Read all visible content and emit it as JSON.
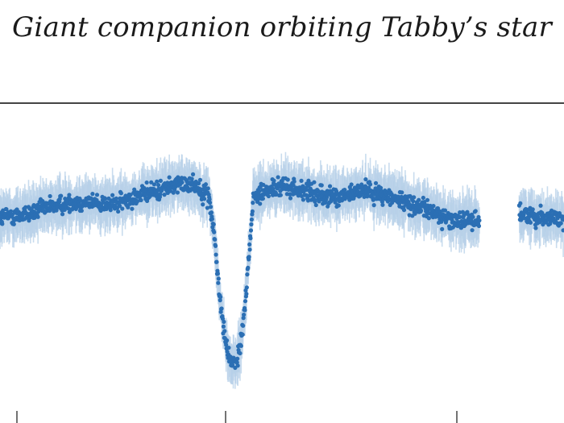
{
  "chart_data": {
    "type": "scatter",
    "title": "Giant companion orbiting Tabby’s star",
    "xlabel": "",
    "ylabel": "",
    "xlim": [
      0,
      100
    ],
    "ylim": [
      0,
      100
    ],
    "grid": false,
    "legend": "none",
    "error_bars": true,
    "colors": {
      "marker": "#2b6fb4",
      "error_bar": "#b7d0e8",
      "frame": "#444444"
    },
    "series": [
      {
        "name": "",
        "x": [
          0,
          5,
          10,
          15,
          20,
          25,
          30,
          34,
          37,
          38,
          39,
          40,
          41,
          42,
          43,
          44,
          45,
          50,
          55,
          60,
          65,
          70,
          75,
          80,
          85,
          88,
          92,
          96,
          100
        ],
        "y": [
          63,
          64,
          67,
          68,
          67,
          70,
          73,
          74,
          70,
          57,
          36,
          22,
          16,
          16,
          26,
          48,
          70,
          73,
          71,
          69,
          72,
          69,
          66,
          62,
          62,
          null,
          64,
          63,
          62
        ],
        "scatter": 5
      }
    ]
  }
}
